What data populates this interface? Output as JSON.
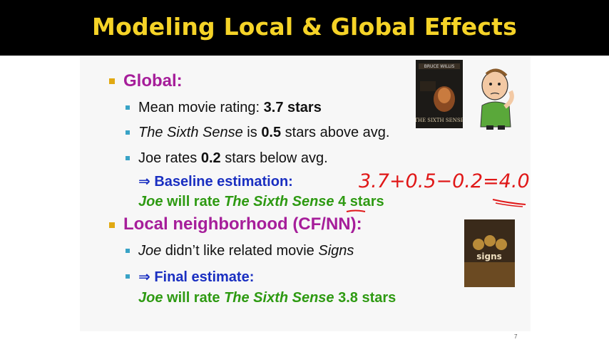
{
  "slide": {
    "title": "Modeling Local & Global Effects",
    "global_heading": "Global:",
    "mean_label": "Mean movie rating: ",
    "mean_value": "3.7 stars",
    "sixth_sense_title": "The Sixth Sense",
    "is_text": " is ",
    "above_value": "0.5",
    "above_text": " stars above avg.",
    "joe_rates_text": "Joe rates ",
    "below_value": "0.2",
    "below_text": " stars below avg.",
    "arrow": "⇒",
    "baseline_label": " Baseline estimation:",
    "baseline_joe": "Joe",
    "baseline_will_rate": " will rate ",
    "baseline_movie": "The Sixth Sense",
    "baseline_value": " 4 stars",
    "local_heading": "Local neighborhood (CF/NN):",
    "local_joe": "Joe",
    "local_text": " didn’t like related movie ",
    "local_movie": "Signs",
    "final_label": " Final estimate:",
    "final_joe": "Joe",
    "final_will_rate": " will rate ",
    "final_movie": "The Sixth Sense",
    "final_value": " 3.8 stars",
    "handwritten": "3.7+0.5−0.2=4.0",
    "page_number": "7"
  },
  "colors": {
    "title_text": "#f5d327",
    "heading_purple": "#a61e9a",
    "blue": "#1a2fc1",
    "green": "#2e9a12",
    "handwriting_red": "#e01818"
  },
  "images": {
    "poster_top": "The Sixth Sense movie poster",
    "cartoon": "thinking man cartoon",
    "poster_bottom": "Signs movie poster"
  }
}
